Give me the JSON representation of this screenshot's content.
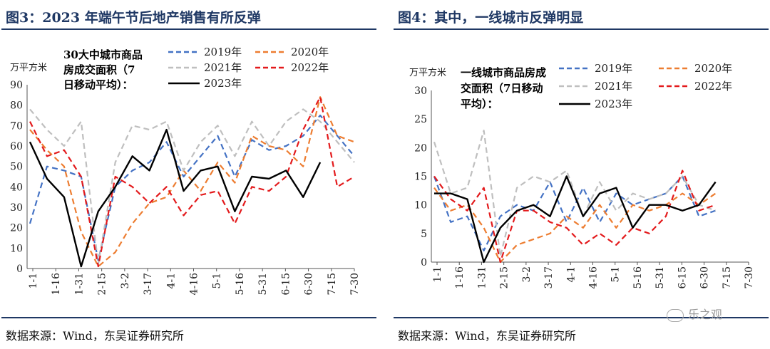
{
  "source_text": "数据来源：Wind，东吴证券研究所",
  "watermark": "乐之观",
  "chart_data": [
    {
      "type": "line",
      "figure_title": "图3：2023 年端午节后地产销售有所反弹",
      "title": "30大中城市商品房成交面积（7日移动平均）：",
      "ylabel": "万平方米",
      "ylim": [
        0,
        90
      ],
      "yticks": [
        0,
        10,
        20,
        30,
        40,
        50,
        60,
        70,
        80,
        90
      ],
      "x_tick_labels": [
        "1-1",
        "1-16",
        "1-31",
        "2-15",
        "3-2",
        "3-17",
        "4-1",
        "4-16",
        "5-1",
        "5-16",
        "5-31",
        "6-15",
        "6-30",
        "7-15",
        "7-30"
      ],
      "series": [
        {
          "name": "2019年",
          "color": "#4472c4",
          "dash": "8,5",
          "width": 2.2,
          "values": [
            22,
            50,
            48,
            45,
            4,
            40,
            48,
            52,
            62,
            45,
            55,
            65,
            45,
            63,
            58,
            60,
            65,
            75,
            65,
            55
          ]
        },
        {
          "name": "2020年",
          "color": "#ed7d31",
          "dash": "8,5",
          "width": 2.2,
          "values": [
            68,
            58,
            50,
            18,
            1,
            8,
            22,
            32,
            35,
            48,
            38,
            52,
            42,
            65,
            60,
            58,
            50,
            84,
            65,
            62
          ]
        },
        {
          "name": "2021年",
          "color": "#bfbfbf",
          "dash": "8,5",
          "width": 2.2,
          "values": [
            78,
            68,
            60,
            72,
            2,
            52,
            70,
            68,
            72,
            48,
            62,
            70,
            55,
            72,
            60,
            72,
            78,
            72,
            62,
            52
          ]
        },
        {
          "name": "2022年",
          "color": "#e31a1c",
          "dash": "8,5",
          "width": 2.2,
          "values": [
            72,
            55,
            58,
            45,
            1,
            45,
            40,
            32,
            40,
            26,
            36,
            38,
            22,
            40,
            38,
            45,
            68,
            84,
            40,
            45
          ]
        },
        {
          "name": "2023年",
          "color": "#000000",
          "dash": "",
          "width": 2.4,
          "values": [
            62,
            44,
            35,
            1,
            28,
            40,
            55,
            48,
            68,
            38,
            48,
            50,
            28,
            45,
            44,
            48,
            35,
            52
          ]
        }
      ]
    },
    {
      "type": "line",
      "figure_title": "图4：其中，一线城市反弹明显",
      "title": "一线城市商品房成交面积（7日移动平均）：",
      "ylabel": "万平方米",
      "ylim": [
        0,
        30
      ],
      "yticks": [
        0,
        5,
        10,
        15,
        20,
        25,
        30
      ],
      "x_tick_labels": [
        "1-1",
        "1-16",
        "1-31",
        "2-15",
        "3-2",
        "3-17",
        "4-1",
        "4-16",
        "5-1",
        "5-16",
        "5-31",
        "6-15",
        "6-30",
        "7-15",
        "7-30"
      ],
      "series": [
        {
          "name": "2019年",
          "color": "#4472c4",
          "dash": "8,5",
          "width": 2.2,
          "values": [
            15,
            7,
            8,
            2,
            8,
            10,
            9,
            14,
            7,
            13,
            7,
            12,
            10,
            11,
            12,
            15,
            8,
            9
          ]
        },
        {
          "name": "2020年",
          "color": "#ed7d31",
          "dash": "8,5",
          "width": 2.2,
          "values": [
            13,
            9,
            10,
            6,
            0,
            3,
            4,
            5,
            8,
            6,
            10,
            6,
            10,
            9,
            10,
            12,
            10,
            12
          ]
        },
        {
          "name": "2021年",
          "color": "#bfbfbf",
          "dash": "8,5",
          "width": 2.2,
          "values": [
            21,
            12,
            13,
            23,
            1,
            13,
            15,
            14,
            16,
            8,
            14,
            9,
            12,
            11,
            12,
            15,
            10,
            9
          ]
        },
        {
          "name": "2022年",
          "color": "#e31a1c",
          "dash": "8,5",
          "width": 2.2,
          "values": [
            15,
            11,
            9,
            13,
            0,
            9,
            9,
            7,
            6,
            3,
            5,
            3,
            6,
            5,
            8,
            16,
            9,
            10
          ]
        },
        {
          "name": "2023年",
          "color": "#000000",
          "dash": "",
          "width": 2.4,
          "values": [
            12,
            12,
            11,
            0,
            6,
            9,
            10,
            8,
            15,
            8,
            12,
            13,
            6,
            10,
            10,
            9,
            10,
            14
          ]
        }
      ]
    }
  ]
}
